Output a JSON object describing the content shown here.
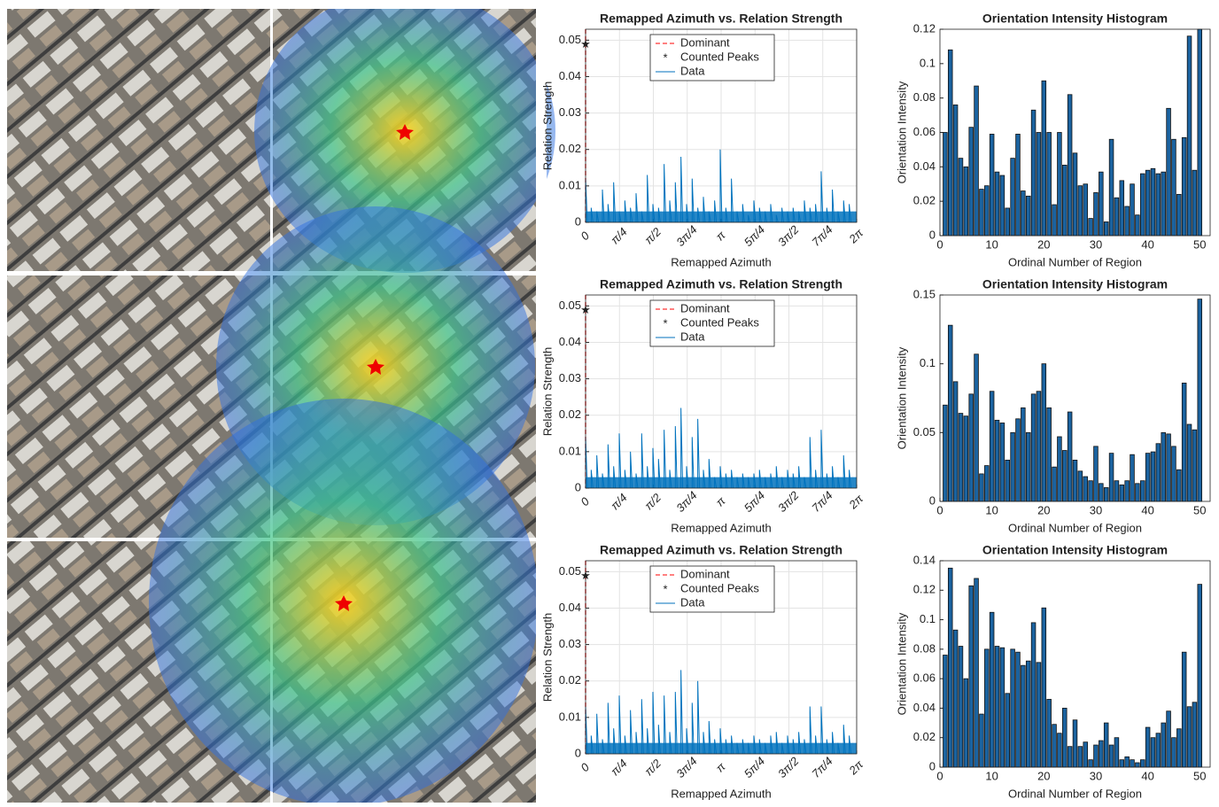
{
  "chart_data": [
    {
      "type": "line",
      "title": "Remapped Azimuth vs. Relation Strength",
      "xlabel": "Remapped Azimuth",
      "ylabel": "Relation Strength",
      "xlim": [
        0,
        6.2832
      ],
      "xticks": [
        0,
        {
          "value": 0.7854,
          "label": "π/4"
        },
        {
          "value": 1.5708,
          "label": "π/2"
        },
        {
          "value": 2.3562,
          "label": "3π/4"
        },
        {
          "value": 3.1416,
          "label": "π"
        },
        {
          "value": 3.927,
          "label": "5π/4"
        },
        {
          "value": 4.7124,
          "label": "3π/2"
        },
        {
          "value": 5.4978,
          "label": "7π/4"
        },
        {
          "value": 6.2832,
          "label": "2π"
        }
      ],
      "ylim": [
        0,
        0.053
      ],
      "yticks": [
        0,
        0.01,
        0.02,
        0.03,
        0.04,
        0.05
      ],
      "grid": true,
      "legend": "top-center",
      "series": [
        {
          "name": "Dominant",
          "color": "#ff0000",
          "style": "dashed",
          "x": [
            0
          ]
        },
        {
          "name": "Counted Peaks",
          "color": "#ff0000",
          "style": "marker",
          "x": [
            0
          ],
          "values": [
            0.049
          ]
        },
        {
          "name": "Data",
          "color": "#0072bd",
          "style": "line",
          "x": [
            0,
            0.13,
            0.26,
            0.39,
            0.52,
            0.65,
            0.78,
            0.91,
            1.04,
            1.17,
            1.3,
            1.43,
            1.56,
            1.69,
            1.82,
            1.95,
            2.08,
            2.21,
            2.34,
            2.47,
            2.6,
            2.73,
            2.86,
            2.99,
            3.12,
            3.25,
            3.38,
            3.51,
            3.64,
            3.77,
            3.9,
            4.03,
            4.16,
            4.29,
            4.42,
            4.55,
            4.68,
            4.81,
            4.94,
            5.07,
            5.2,
            5.33,
            5.46,
            5.59,
            5.72,
            5.85,
            5.98,
            6.11
          ],
          "values": [
            0.012,
            0.004,
            0.003,
            0.009,
            0.005,
            0.011,
            0.003,
            0.006,
            0.004,
            0.008,
            0.003,
            0.013,
            0.005,
            0.004,
            0.016,
            0.006,
            0.011,
            0.018,
            0.005,
            0.012,
            0.004,
            0.007,
            0.003,
            0.006,
            0.02,
            0.004,
            0.012,
            0.003,
            0.005,
            0.002,
            0.006,
            0.004,
            0.003,
            0.005,
            0.002,
            0.004,
            0.003,
            0.004,
            0.003,
            0.006,
            0.004,
            0.005,
            0.014,
            0.004,
            0.009,
            0.003,
            0.006,
            0.005
          ]
        }
      ]
    },
    {
      "type": "bar",
      "title": "Orientation Intensity Histogram",
      "xlabel": "Ordinal Number of Region",
      "ylabel": "Orientation Intensity",
      "xlim": [
        0,
        52
      ],
      "xticks": [
        0,
        10,
        20,
        30,
        40,
        50
      ],
      "ylim": [
        0,
        0.12
      ],
      "yticks": [
        0,
        0.02,
        0.04,
        0.06,
        0.08,
        0.1,
        0.12
      ],
      "grid": false,
      "color": "#1b63a0",
      "x": [
        1,
        2,
        3,
        4,
        5,
        6,
        7,
        8,
        9,
        10,
        11,
        12,
        13,
        14,
        15,
        16,
        17,
        18,
        19,
        20,
        21,
        22,
        23,
        24,
        25,
        26,
        27,
        28,
        29,
        30,
        31,
        32,
        33,
        34,
        35,
        36,
        37,
        38,
        39,
        40,
        41,
        42,
        43,
        44,
        45,
        46,
        47,
        48,
        49,
        50
      ],
      "values": [
        0.06,
        0.108,
        0.076,
        0.045,
        0.04,
        0.063,
        0.087,
        0.027,
        0.029,
        0.059,
        0.037,
        0.035,
        0.016,
        0.045,
        0.059,
        0.026,
        0.023,
        0.073,
        0.06,
        0.09,
        0.06,
        0.018,
        0.06,
        0.041,
        0.082,
        0.048,
        0.029,
        0.03,
        0.01,
        0.025,
        0.037,
        0.008,
        0.056,
        0.022,
        0.032,
        0.017,
        0.03,
        0.012,
        0.036,
        0.038,
        0.039,
        0.036,
        0.037,
        0.074,
        0.056,
        0.024,
        0.057,
        0.116,
        0.038,
        0.12
      ]
    },
    {
      "type": "line",
      "title": "Remapped Azimuth vs. Relation Strength",
      "xlabel": "Remapped Azimuth",
      "ylabel": "Relation Strength",
      "xlim": [
        0,
        6.2832
      ],
      "xticks": [
        0,
        {
          "value": 0.7854,
          "label": "π/4"
        },
        {
          "value": 1.5708,
          "label": "π/2"
        },
        {
          "value": 2.3562,
          "label": "3π/4"
        },
        {
          "value": 3.1416,
          "label": "π"
        },
        {
          "value": 3.927,
          "label": "5π/4"
        },
        {
          "value": 4.7124,
          "label": "3π/2"
        },
        {
          "value": 5.4978,
          "label": "7π/4"
        },
        {
          "value": 6.2832,
          "label": "2π"
        }
      ],
      "ylim": [
        0,
        0.053
      ],
      "yticks": [
        0,
        0.01,
        0.02,
        0.03,
        0.04,
        0.05
      ],
      "grid": true,
      "legend": "top-center",
      "series": [
        {
          "name": "Dominant",
          "color": "#ff0000",
          "style": "dashed",
          "x": [
            0
          ]
        },
        {
          "name": "Counted Peaks",
          "color": "#ff0000",
          "style": "marker",
          "x": [
            0
          ],
          "values": [
            0.049
          ]
        },
        {
          "name": "Data",
          "color": "#0072bd",
          "style": "line",
          "x": [
            0,
            0.13,
            0.26,
            0.39,
            0.52,
            0.65,
            0.78,
            0.91,
            1.04,
            1.17,
            1.3,
            1.43,
            1.56,
            1.69,
            1.82,
            1.95,
            2.08,
            2.21,
            2.34,
            2.47,
            2.6,
            2.73,
            2.86,
            2.99,
            3.12,
            3.25,
            3.38,
            3.51,
            3.64,
            3.77,
            3.9,
            4.03,
            4.16,
            4.29,
            4.42,
            4.55,
            4.68,
            4.81,
            4.94,
            5.07,
            5.2,
            5.33,
            5.46,
            5.59,
            5.72,
            5.85,
            5.98,
            6.11
          ],
          "values": [
            0.014,
            0.005,
            0.009,
            0.004,
            0.012,
            0.006,
            0.015,
            0.005,
            0.01,
            0.004,
            0.015,
            0.006,
            0.011,
            0.008,
            0.016,
            0.005,
            0.017,
            0.022,
            0.006,
            0.014,
            0.019,
            0.005,
            0.008,
            0.003,
            0.006,
            0.004,
            0.005,
            0.003,
            0.004,
            0.003,
            0.004,
            0.005,
            0.003,
            0.004,
            0.006,
            0.003,
            0.005,
            0.004,
            0.006,
            0.003,
            0.014,
            0.005,
            0.016,
            0.004,
            0.006,
            0.003,
            0.009,
            0.005
          ]
        }
      ]
    },
    {
      "type": "bar",
      "title": "Orientation Intensity Histogram",
      "xlabel": "Ordinal Number of Region",
      "ylabel": "Orientation Intensity",
      "xlim": [
        0,
        52
      ],
      "xticks": [
        0,
        10,
        20,
        30,
        40,
        50
      ],
      "ylim": [
        0,
        0.15
      ],
      "yticks": [
        0,
        0.05,
        0.1,
        0.15
      ],
      "grid": false,
      "color": "#1b63a0",
      "x": [
        1,
        2,
        3,
        4,
        5,
        6,
        7,
        8,
        9,
        10,
        11,
        12,
        13,
        14,
        15,
        16,
        17,
        18,
        19,
        20,
        21,
        22,
        23,
        24,
        25,
        26,
        27,
        28,
        29,
        30,
        31,
        32,
        33,
        34,
        35,
        36,
        37,
        38,
        39,
        40,
        41,
        42,
        43,
        44,
        45,
        46,
        47,
        48,
        49,
        50
      ],
      "values": [
        0.07,
        0.128,
        0.087,
        0.064,
        0.062,
        0.078,
        0.107,
        0.02,
        0.026,
        0.08,
        0.059,
        0.057,
        0.03,
        0.05,
        0.06,
        0.068,
        0.05,
        0.078,
        0.08,
        0.1,
        0.068,
        0.025,
        0.047,
        0.037,
        0.065,
        0.03,
        0.022,
        0.018,
        0.015,
        0.04,
        0.013,
        0.01,
        0.035,
        0.015,
        0.012,
        0.015,
        0.034,
        0.013,
        0.015,
        0.035,
        0.036,
        0.042,
        0.05,
        0.049,
        0.04,
        0.023,
        0.086,
        0.056,
        0.052,
        0.147
      ]
    },
    {
      "type": "line",
      "title": "Remapped Azimuth vs. Relation Strength",
      "xlabel": "Remapped Azimuth",
      "ylabel": "Relation Strength",
      "xlim": [
        0,
        6.2832
      ],
      "xticks": [
        0,
        {
          "value": 0.7854,
          "label": "π/4"
        },
        {
          "value": 1.5708,
          "label": "π/2"
        },
        {
          "value": 2.3562,
          "label": "3π/4"
        },
        {
          "value": 3.1416,
          "label": "π"
        },
        {
          "value": 3.927,
          "label": "5π/4"
        },
        {
          "value": 4.7124,
          "label": "3π/2"
        },
        {
          "value": 5.4978,
          "label": "7π/4"
        },
        {
          "value": 6.2832,
          "label": "2π"
        }
      ],
      "ylim": [
        0,
        0.053
      ],
      "yticks": [
        0,
        0.01,
        0.02,
        0.03,
        0.04,
        0.05
      ],
      "grid": true,
      "legend": "top-center",
      "series": [
        {
          "name": "Dominant",
          "color": "#ff0000",
          "style": "dashed",
          "x": [
            0
          ]
        },
        {
          "name": "Counted Peaks",
          "color": "#ff0000",
          "style": "marker",
          "x": [
            0
          ],
          "values": [
            0.049
          ]
        },
        {
          "name": "Data",
          "color": "#0072bd",
          "style": "line",
          "x": [
            0,
            0.13,
            0.26,
            0.39,
            0.52,
            0.65,
            0.78,
            0.91,
            1.04,
            1.17,
            1.3,
            1.43,
            1.56,
            1.69,
            1.82,
            1.95,
            2.08,
            2.21,
            2.34,
            2.47,
            2.6,
            2.73,
            2.86,
            2.99,
            3.12,
            3.25,
            3.38,
            3.51,
            3.64,
            3.77,
            3.9,
            4.03,
            4.16,
            4.29,
            4.42,
            4.55,
            4.68,
            4.81,
            4.94,
            5.07,
            5.2,
            5.33,
            5.46,
            5.59,
            5.72,
            5.85,
            5.98,
            6.11
          ],
          "values": [
            0.013,
            0.005,
            0.011,
            0.004,
            0.014,
            0.007,
            0.016,
            0.005,
            0.012,
            0.006,
            0.015,
            0.007,
            0.017,
            0.008,
            0.016,
            0.006,
            0.017,
            0.023,
            0.007,
            0.014,
            0.02,
            0.006,
            0.009,
            0.004,
            0.007,
            0.004,
            0.005,
            0.003,
            0.004,
            0.003,
            0.005,
            0.004,
            0.003,
            0.005,
            0.006,
            0.003,
            0.005,
            0.004,
            0.006,
            0.004,
            0.013,
            0.005,
            0.013,
            0.004,
            0.006,
            0.003,
            0.008,
            0.005
          ]
        }
      ]
    },
    {
      "type": "bar",
      "title": "Orientation Intensity Histogram",
      "xlabel": "Ordinal Number of Region",
      "ylabel": "Orientation Intensity",
      "xlim": [
        0,
        52
      ],
      "xticks": [
        0,
        10,
        20,
        30,
        40,
        50
      ],
      "ylim": [
        0,
        0.14
      ],
      "yticks": [
        0,
        0.02,
        0.04,
        0.06,
        0.08,
        0.1,
        0.12,
        0.14
      ],
      "grid": false,
      "color": "#1b63a0",
      "x": [
        1,
        2,
        3,
        4,
        5,
        6,
        7,
        8,
        9,
        10,
        11,
        12,
        13,
        14,
        15,
        16,
        17,
        18,
        19,
        20,
        21,
        22,
        23,
        24,
        25,
        26,
        27,
        28,
        29,
        30,
        31,
        32,
        33,
        34,
        35,
        36,
        37,
        38,
        39,
        40,
        41,
        42,
        43,
        44,
        45,
        46,
        47,
        48,
        49,
        50
      ],
      "values": [
        0.076,
        0.135,
        0.093,
        0.082,
        0.06,
        0.123,
        0.128,
        0.036,
        0.08,
        0.105,
        0.082,
        0.081,
        0.05,
        0.08,
        0.078,
        0.069,
        0.072,
        0.098,
        0.071,
        0.108,
        0.046,
        0.029,
        0.023,
        0.04,
        0.014,
        0.032,
        0.014,
        0.017,
        0.005,
        0.015,
        0.018,
        0.03,
        0.015,
        0.02,
        0.005,
        0.007,
        0.005,
        0.003,
        0.005,
        0.027,
        0.02,
        0.023,
        0.03,
        0.038,
        0.02,
        0.026,
        0.078,
        0.041,
        0.044,
        0.124
      ]
    }
  ]
}
